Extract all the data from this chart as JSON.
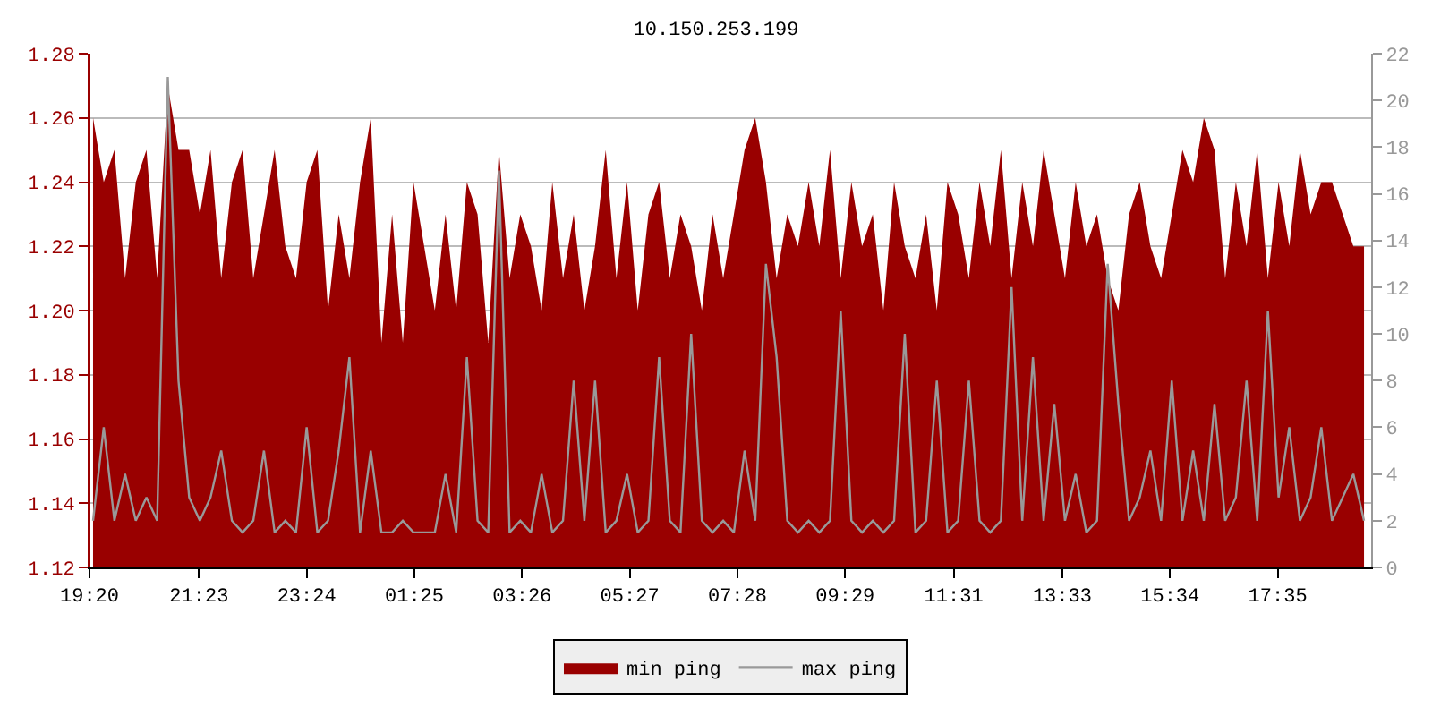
{
  "chart_data": {
    "type": "area",
    "title": "10.150.253.199",
    "x": [
      "--01-01T19:24",
      "--01-01T19:36",
      "--01-01T19:48",
      "--01-01T20:00",
      "--01-01T20:12",
      "--01-01T20:24",
      "--01-01T20:36",
      "--01-01T20:48",
      "--01-01T21:00",
      "--01-01T21:12",
      "--01-01T21:24",
      "--01-01T21:36",
      "--01-01T21:48",
      "--01-01T22:00",
      "--01-01T22:12",
      "--01-01T22:24",
      "--01-01T22:36",
      "--01-01T22:48",
      "--01-01T23:00",
      "--01-01T23:12",
      "--01-01T23:24",
      "--01-01T23:36",
      "--01-01T23:48",
      "--01-02T00:00",
      "--01-02T00:12",
      "--01-02T00:24",
      "--01-02T00:36",
      "--01-02T00:48",
      "--01-02T01:00",
      "--01-02T01:12",
      "--01-02T01:24",
      "--01-02T01:36",
      "--01-02T01:48",
      "--01-02T02:00",
      "--01-02T02:12",
      "--01-02T02:24",
      "--01-02T02:36",
      "--01-02T02:48",
      "--01-02T03:00",
      "--01-02T03:12",
      "--01-02T03:24",
      "--01-02T03:36",
      "--01-02T03:48",
      "--01-02T04:00",
      "--01-02T04:12",
      "--01-02T04:24",
      "--01-02T04:36",
      "--01-02T04:48",
      "--01-02T05:00",
      "--01-02T05:12",
      "--01-02T05:24",
      "--01-02T05:36",
      "--01-02T05:48",
      "--01-02T06:00",
      "--01-02T06:12",
      "--01-02T06:24",
      "--01-02T06:36",
      "--01-02T06:48",
      "--01-02T07:00",
      "--01-02T07:12",
      "--01-02T07:24",
      "--01-02T07:36",
      "--01-02T07:48",
      "--01-02T08:00",
      "--01-02T08:12",
      "--01-02T08:24",
      "--01-02T08:36",
      "--01-02T08:48",
      "--01-02T09:00",
      "--01-02T09:12",
      "--01-02T09:24",
      "--01-02T09:36",
      "--01-02T09:48",
      "--01-02T10:00",
      "--01-02T10:12",
      "--01-02T10:24",
      "--01-02T10:36",
      "--01-02T10:48",
      "--01-02T11:00",
      "--01-02T11:12",
      "--01-02T11:24",
      "--01-02T11:36",
      "--01-02T11:48",
      "--01-02T12:00",
      "--01-02T12:12",
      "--01-02T12:24",
      "--01-02T12:36",
      "--01-02T12:48",
      "--01-02T13:00",
      "--01-02T13:12",
      "--01-02T13:24",
      "--01-02T13:36",
      "--01-02T13:48",
      "--01-02T14:00",
      "--01-02T14:12",
      "--01-02T14:24",
      "--01-02T14:36",
      "--01-02T14:48",
      "--01-02T15:00",
      "--01-02T15:12",
      "--01-02T15:24",
      "--01-02T15:36",
      "--01-02T15:48",
      "--01-02T16:00",
      "--01-02T16:12",
      "--01-02T16:24",
      "--01-02T16:36",
      "--01-02T16:48",
      "--01-02T17:00",
      "--01-02T17:12",
      "--01-02T17:24",
      "--01-02T17:36",
      "--01-02T17:48",
      "--01-02T18:00",
      "--01-02T18:12",
      "--01-02T18:24",
      "--01-02T18:36",
      "--01-02T18:48",
      "--01-02T19:00",
      "--01-02T19:12"
    ],
    "series": [
      {
        "name": "min ping",
        "color": "#990000",
        "values": [
          1.26,
          1.24,
          1.25,
          1.21,
          1.24,
          1.25,
          1.21,
          1.27,
          1.25,
          1.25,
          1.23,
          1.25,
          1.21,
          1.24,
          1.25,
          1.21,
          1.23,
          1.25,
          1.22,
          1.21,
          1.24,
          1.25,
          1.2,
          1.23,
          1.21,
          1.24,
          1.26,
          1.19,
          1.23,
          1.19,
          1.24,
          1.22,
          1.2,
          1.23,
          1.2,
          1.24,
          1.23,
          1.19,
          1.25,
          1.21,
          1.23,
          1.22,
          1.2,
          1.24,
          1.21,
          1.23,
          1.2,
          1.22,
          1.25,
          1.21,
          1.24,
          1.2,
          1.23,
          1.24,
          1.21,
          1.23,
          1.22,
          1.2,
          1.23,
          1.21,
          1.23,
          1.25,
          1.26,
          1.24,
          1.21,
          1.23,
          1.22,
          1.24,
          1.22,
          1.25,
          1.21,
          1.24,
          1.22,
          1.23,
          1.2,
          1.24,
          1.22,
          1.21,
          1.23,
          1.2,
          1.24,
          1.23,
          1.21,
          1.24,
          1.22,
          1.25,
          1.21,
          1.24,
          1.22,
          1.25,
          1.23,
          1.21,
          1.24,
          1.22,
          1.23,
          1.21,
          1.2,
          1.23,
          1.24,
          1.22,
          1.21,
          1.23,
          1.25,
          1.24,
          1.26,
          1.25,
          1.21,
          1.24,
          1.22,
          1.25,
          1.21,
          1.24,
          1.22,
          1.25,
          1.23,
          1.24,
          1.24,
          1.23,
          1.22,
          1.22
        ]
      },
      {
        "name": "max ping",
        "type": "line",
        "axis": "y2",
        "color": "#999999",
        "values": [
          2,
          6,
          2,
          4,
          2,
          3,
          2,
          21,
          8,
          3,
          2,
          3,
          5,
          2,
          1.5,
          2,
          5,
          1.5,
          2,
          1.5,
          6,
          1.5,
          2,
          5,
          9,
          1.5,
          5,
          1.5,
          1.5,
          2,
          1.5,
          1.5,
          1.5,
          4,
          1.5,
          9,
          2,
          1.5,
          17,
          1.5,
          2,
          1.5,
          4,
          1.5,
          2,
          8,
          2,
          8,
          1.5,
          2,
          4,
          1.5,
          2,
          9,
          2,
          1.5,
          10,
          2,
          1.5,
          2,
          1.5,
          5,
          2,
          13,
          9,
          2,
          1.5,
          2,
          1.5,
          2,
          11,
          2,
          1.5,
          2,
          1.5,
          2,
          10,
          1.5,
          2,
          8,
          1.5,
          2,
          8,
          2,
          1.5,
          2,
          12,
          2,
          9,
          2,
          7,
          2,
          4,
          1.5,
          2,
          13,
          7,
          2,
          3,
          5,
          2,
          8,
          2,
          5,
          2,
          7,
          2,
          3,
          8,
          2,
          11,
          3,
          6,
          2,
          3,
          6,
          2,
          3,
          4,
          2
        ]
      }
    ],
    "xlim": [
      "--01-01T19:20",
      "--01-02T19:20"
    ],
    "xticks": [
      {
        "value": "--01-01T19:20",
        "label": "19:20"
      },
      {
        "value": "--01-01T21:23",
        "label": "21:23"
      },
      {
        "value": "--01-01T23:24",
        "label": "23:24"
      },
      {
        "value": "--01-02T01:25",
        "label": "01:25"
      },
      {
        "value": "--01-02T03:26",
        "label": "03:26"
      },
      {
        "value": "--01-02T05:27",
        "label": "05:27"
      },
      {
        "value": "--01-02T07:28",
        "label": "07:28"
      },
      {
        "value": "--01-02T09:29",
        "label": "09:29"
      },
      {
        "value": "--01-02T11:31",
        "label": "11:31"
      },
      {
        "value": "--01-02T13:33",
        "label": "13:33"
      },
      {
        "value": "--01-02T15:34",
        "label": "15:34"
      },
      {
        "value": "--01-02T17:35",
        "label": "17:35"
      }
    ],
    "ylim": [
      1.12,
      1.28
    ],
    "yticks": [
      {
        "value": 1.12,
        "label": "1.12"
      },
      {
        "value": 1.14,
        "label": "1.14"
      },
      {
        "value": 1.16,
        "label": "1.16"
      },
      {
        "value": 1.18,
        "label": "1.18"
      },
      {
        "value": 1.2,
        "label": "1.20"
      },
      {
        "value": 1.22,
        "label": "1.22"
      },
      {
        "value": 1.24,
        "label": "1.24"
      },
      {
        "value": 1.26,
        "label": "1.26"
      },
      {
        "value": 1.28,
        "label": "1.28"
      }
    ],
    "y2lim": [
      0,
      22
    ],
    "y2ticks": [
      0,
      2,
      4,
      6,
      8,
      10,
      12,
      14,
      16,
      18,
      20,
      22
    ],
    "grid": "y",
    "legend": "bottom"
  }
}
